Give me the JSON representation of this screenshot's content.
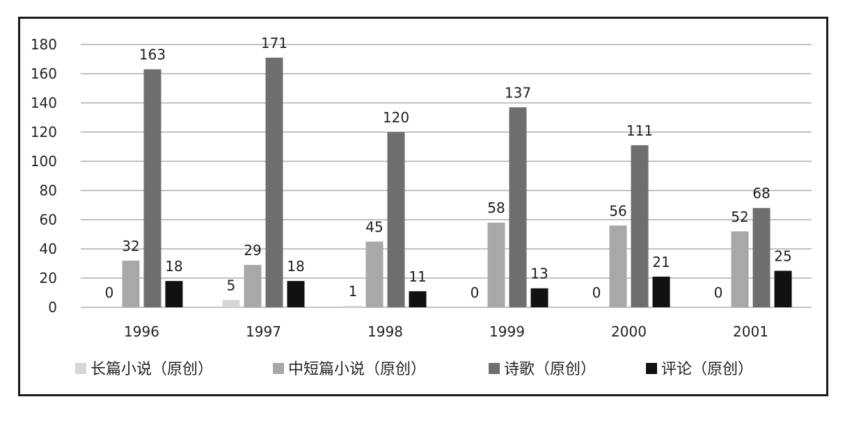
{
  "chart_data": {
    "type": "bar",
    "categories": [
      "1996",
      "1997",
      "1998",
      "1999",
      "2000",
      "2001"
    ],
    "series": [
      {
        "name": "长篇小说（原创）",
        "values": [
          0,
          5,
          1,
          0,
          0,
          0
        ],
        "color": "#d6d6d6"
      },
      {
        "name": "中短篇小说（原创）",
        "values": [
          32,
          29,
          45,
          58,
          56,
          52
        ],
        "color": "#a8a8a8"
      },
      {
        "name": "诗歌（原创）",
        "values": [
          163,
          171,
          120,
          137,
          111,
          68
        ],
        "color": "#6e6e6e"
      },
      {
        "name": "评论（原创）",
        "values": [
          18,
          18,
          11,
          13,
          21,
          25
        ],
        "color": "#111111"
      }
    ],
    "y_ticks": [
      "0",
      "20",
      "40",
      "60",
      "80",
      "100",
      "120",
      "140",
      "160",
      "180"
    ],
    "ylim": [
      0,
      180
    ],
    "grid": true,
    "gridline_color": "#c2c2c2",
    "legend_position": "bottom"
  }
}
